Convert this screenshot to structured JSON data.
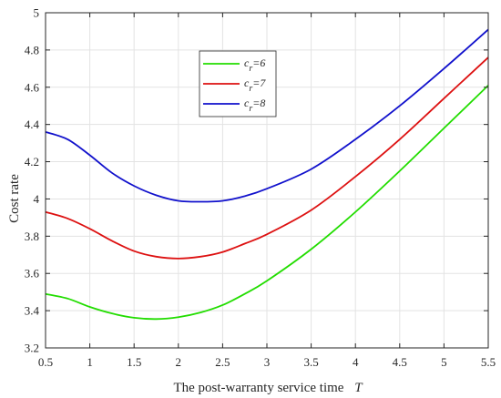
{
  "chart_data": {
    "type": "line",
    "xlabel": "The post-warranty service time",
    "xlabel_var": "T",
    "ylabel": "Cost rate",
    "xlim": [
      0.5,
      5.5
    ],
    "ylim": [
      3.2,
      5.0
    ],
    "xticks": [
      "0.5",
      "1",
      "1.5",
      "2",
      "2.5",
      "3",
      "3.5",
      "4",
      "4.5",
      "5",
      "5.5"
    ],
    "yticks": [
      "3.2",
      "3.4",
      "3.6",
      "3.8",
      "4",
      "4.2",
      "4.4",
      "4.6",
      "4.8",
      "5"
    ],
    "grid": true,
    "legend_position": "upper-center",
    "series": [
      {
        "name": "c_r=6",
        "label_main": "c",
        "label_sub": "r",
        "label_rest": "=6",
        "color": "#22dd00",
        "x": [
          0.5,
          0.75,
          1.0,
          1.25,
          1.5,
          1.75,
          2.0,
          2.25,
          2.5,
          2.75,
          3.0,
          3.5,
          4.0,
          4.5,
          5.0,
          5.5
        ],
        "y": [
          3.49,
          3.465,
          3.42,
          3.385,
          3.362,
          3.355,
          3.365,
          3.39,
          3.43,
          3.49,
          3.56,
          3.73,
          3.93,
          4.15,
          4.38,
          4.61
        ]
      },
      {
        "name": "c_r=7",
        "label_main": "c",
        "label_sub": "r",
        "label_rest": "=7",
        "color": "#dd1111",
        "x": [
          0.5,
          0.75,
          1.0,
          1.25,
          1.5,
          1.75,
          2.0,
          2.25,
          2.5,
          2.75,
          3.0,
          3.5,
          4.0,
          4.5,
          5.0,
          5.5
        ],
        "y": [
          3.93,
          3.895,
          3.84,
          3.775,
          3.72,
          3.69,
          3.68,
          3.69,
          3.715,
          3.76,
          3.81,
          3.94,
          4.12,
          4.32,
          4.54,
          4.76
        ]
      },
      {
        "name": "c_r=8",
        "label_main": "c",
        "label_sub": "r",
        "label_rest": "=8",
        "color": "#1111cc",
        "x": [
          0.5,
          0.75,
          1.0,
          1.25,
          1.5,
          1.75,
          2.0,
          2.25,
          2.5,
          2.75,
          3.0,
          3.5,
          4.0,
          4.5,
          5.0,
          5.5
        ],
        "y": [
          4.36,
          4.32,
          4.235,
          4.14,
          4.07,
          4.02,
          3.99,
          3.985,
          3.99,
          4.015,
          4.055,
          4.16,
          4.32,
          4.5,
          4.7,
          4.91
        ]
      }
    ]
  }
}
